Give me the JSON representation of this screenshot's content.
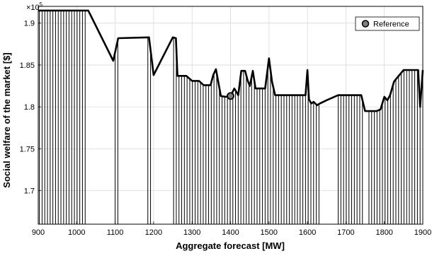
{
  "chart_data": {
    "type": "line",
    "xlabel": "Aggregate forecast [MW]",
    "ylabel": "Social welfare of the market [$]",
    "y_multiplier_label": "×10",
    "y_multiplier_exponent": "5",
    "xlim": [
      900,
      1900
    ],
    "ylim": [
      1.66,
      1.92
    ],
    "x_ticks": [
      900,
      1000,
      1100,
      1200,
      1300,
      1400,
      1500,
      1600,
      1700,
      1800,
      1900
    ],
    "x_tick_labels": [
      "900",
      "1000",
      "1100",
      "1200",
      "1300",
      "1400",
      "1500",
      "1600",
      "1700",
      "1800",
      "1900"
    ],
    "y_ticks": [
      1.7,
      1.75,
      1.8,
      1.85,
      1.9
    ],
    "y_tick_labels": [
      "1.7",
      "1.75",
      "1.8",
      "1.85",
      "1.9"
    ],
    "grid": true,
    "legend_position": "top-right",
    "series": [
      {
        "name": "",
        "color": "#000000",
        "x": [
          900,
          1030,
          1095,
          1108,
          1188,
          1200,
          1250,
          1258,
          1262,
          1285,
          1300,
          1318,
          1330,
          1348,
          1355,
          1362,
          1375,
          1387,
          1400,
          1410,
          1420,
          1428,
          1438,
          1445,
          1450,
          1458,
          1465,
          1475,
          1490,
          1500,
          1508,
          1516,
          1522,
          1535,
          1545,
          1560,
          1595,
          1600,
          1604,
          1610,
          1616,
          1625,
          1632,
          1650,
          1680,
          1690,
          1700,
          1740,
          1750,
          1760,
          1770,
          1780,
          1790,
          1800,
          1808,
          1815,
          1825,
          1830,
          1850,
          1860,
          1880,
          1888,
          1893,
          1900
        ],
        "y": [
          1.915,
          1.915,
          1.855,
          1.882,
          1.883,
          1.838,
          1.883,
          1.882,
          1.837,
          1.837,
          1.831,
          1.831,
          1.826,
          1.826,
          1.838,
          1.845,
          1.813,
          1.812,
          1.813,
          1.822,
          1.814,
          1.843,
          1.843,
          1.831,
          1.825,
          1.843,
          1.822,
          1.822,
          1.822,
          1.858,
          1.83,
          1.814,
          1.814,
          1.814,
          1.814,
          1.814,
          1.814,
          1.844,
          1.809,
          1.804,
          1.806,
          1.802,
          1.804,
          1.808,
          1.814,
          1.814,
          1.814,
          1.814,
          1.795,
          1.795,
          1.795,
          1.795,
          1.797,
          1.812,
          1.808,
          1.814,
          1.83,
          1.833,
          1.844,
          1.844,
          1.844,
          1.844,
          1.8,
          1.844
        ]
      }
    ],
    "fill_regions": [
      {
        "x0": 903,
        "x1": 1028
      },
      {
        "x0": 1100,
        "x1": 1108
      },
      {
        "x0": 1185,
        "x1": 1198
      },
      {
        "x0": 1252,
        "x1": 1632
      },
      {
        "x0": 1680,
        "x1": 1743
      },
      {
        "x0": 1760,
        "x1": 1900
      }
    ],
    "reference_point": {
      "label": "Reference",
      "x": 1400,
      "y": 1.813
    }
  }
}
